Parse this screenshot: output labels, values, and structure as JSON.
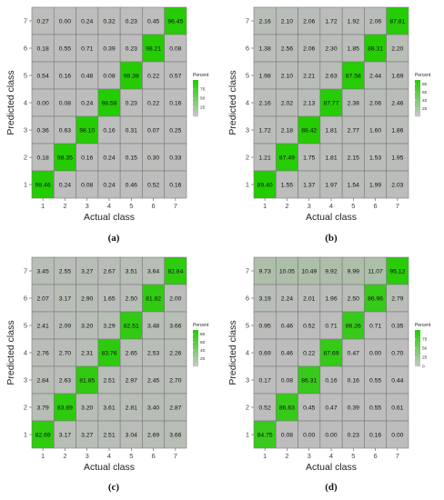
{
  "class_labels": [
    "1",
    "2",
    "3",
    "4",
    "5",
    "6",
    "7"
  ],
  "legend_title": "Percent",
  "chart_data": [
    {
      "type": "heatmap",
      "caption": "(a)",
      "xlabel": "Actual class",
      "ylabel": "Predicted class",
      "x": [
        "1",
        "2",
        "3",
        "4",
        "5",
        "6",
        "7"
      ],
      "y": [
        "1",
        "2",
        "3",
        "4",
        "5",
        "6",
        "7"
      ],
      "legend": {
        "title": "Percent",
        "ticks": [
          25,
          50,
          75
        ],
        "range": [
          0,
          100
        ],
        "placement": "right"
      },
      "rows": [
        {
          "label": "7",
          "values": [
            "0.27",
            "0.00",
            "0.24",
            "0.32",
            "0.23",
            "0.45",
            "96.45"
          ]
        },
        {
          "label": "6",
          "values": [
            "0.18",
            "0.55",
            "0.71",
            "0.39",
            "0.23",
            "98.21",
            "0.08"
          ]
        },
        {
          "label": "5",
          "values": [
            "0.54",
            "0.16",
            "0.48",
            "0.08",
            "98.38",
            "0.22",
            "0.57"
          ]
        },
        {
          "label": "4",
          "values": [
            "0.00",
            "0.08",
            "0.24",
            "98.58",
            "0.23",
            "0.22",
            "0.16"
          ]
        },
        {
          "label": "3",
          "values": [
            "0.36",
            "0.63",
            "98.10",
            "0.16",
            "0.31",
            "0.07",
            "0.25"
          ]
        },
        {
          "label": "2",
          "values": [
            "0.18",
            "98.35",
            "0.16",
            "0.24",
            "0.15",
            "0.30",
            "0.33"
          ]
        },
        {
          "label": "1",
          "values": [
            "98.46",
            "0.24",
            "0.08",
            "0.24",
            "0.46",
            "0.52",
            "0.16"
          ]
        }
      ]
    },
    {
      "type": "heatmap",
      "caption": "(b)",
      "xlabel": "Actual class",
      "ylabel": "Predicted class",
      "x": [
        "1",
        "2",
        "3",
        "4",
        "5",
        "6",
        "7"
      ],
      "y": [
        "1",
        "2",
        "3",
        "4",
        "5",
        "6",
        "7"
      ],
      "legend": {
        "title": "Percent",
        "ticks": [
          20,
          40,
          60,
          80
        ],
        "range": [
          0,
          90
        ],
        "placement": "right"
      },
      "rows": [
        {
          "label": "7",
          "values": [
            "2.16",
            "2.10",
            "2.06",
            "1.72",
            "1.92",
            "2.06",
            "87.81"
          ]
        },
        {
          "label": "6",
          "values": [
            "1.38",
            "2.56",
            "2.06",
            "2.30",
            "1.85",
            "88.31",
            "2.20"
          ]
        },
        {
          "label": "5",
          "values": [
            "1.98",
            "2.10",
            "2.21",
            "2.63",
            "87.58",
            "2.44",
            "1.69"
          ]
        },
        {
          "label": "4",
          "values": [
            "2.16",
            "2.02",
            "2.13",
            "87.77",
            "2.38",
            "2.06",
            "2.46"
          ]
        },
        {
          "label": "3",
          "values": [
            "1.72",
            "2.18",
            "88.42",
            "1.81",
            "2.77",
            "1.60",
            "1.86"
          ]
        },
        {
          "label": "2",
          "values": [
            "1.21",
            "87.49",
            "1.75",
            "1.81",
            "2.15",
            "1.53",
            "1.95"
          ]
        },
        {
          "label": "1",
          "values": [
            "89.40",
            "1.55",
            "1.37",
            "1.97",
            "1.54",
            "1.99",
            "2.03"
          ]
        }
      ]
    },
    {
      "type": "heatmap",
      "caption": "(c)",
      "xlabel": "Actual class",
      "ylabel": "Predicted class",
      "x": [
        "1",
        "2",
        "3",
        "4",
        "5",
        "6",
        "7"
      ],
      "y": [
        "1",
        "2",
        "3",
        "4",
        "5",
        "6",
        "7"
      ],
      "legend": {
        "title": "Percent",
        "ticks": [
          20,
          40,
          60,
          80
        ],
        "range": [
          0,
          90
        ],
        "placement": "right"
      },
      "rows": [
        {
          "label": "7",
          "values": [
            "3.45",
            "2.55",
            "3.27",
            "2.67",
            "3.51",
            "3.64",
            "82.84"
          ]
        },
        {
          "label": "6",
          "values": [
            "2.07",
            "3.17",
            "2.90",
            "1.65",
            "2.50",
            "81.82",
            "2.00"
          ]
        },
        {
          "label": "5",
          "values": [
            "2.41",
            "2.09",
            "3.20",
            "3.29",
            "82.51",
            "3.48",
            "3.66"
          ]
        },
        {
          "label": "4",
          "values": [
            "2.76",
            "2.70",
            "2.31",
            "83.76",
            "2.65",
            "2.53",
            "2.26"
          ]
        },
        {
          "label": "3",
          "values": [
            "2.84",
            "2.63",
            "81.85",
            "2.51",
            "2.97",
            "2.45",
            "2.70"
          ]
        },
        {
          "label": "2",
          "values": [
            "3.79",
            "83.69",
            "3.20",
            "3.61",
            "2.81",
            "3.40",
            "2.87"
          ]
        },
        {
          "label": "1",
          "values": [
            "82.69",
            "3.17",
            "3.27",
            "2.51",
            "3.04",
            "2.69",
            "3.66"
          ]
        }
      ]
    },
    {
      "type": "heatmap",
      "caption": "(d)",
      "xlabel": "Actual class",
      "ylabel": "Predicted class",
      "x": [
        "1",
        "2",
        "3",
        "4",
        "5",
        "6",
        "7"
      ],
      "y": [
        "1",
        "2",
        "3",
        "4",
        "5",
        "6",
        "7"
      ],
      "legend": {
        "title": "Percent",
        "ticks": [
          0,
          25,
          50,
          75
        ],
        "range": [
          0,
          100
        ],
        "placement": "right"
      },
      "rows": [
        {
          "label": "7",
          "values": [
            "9.73",
            "10.05",
            "10.49",
            "9.92",
            "9.99",
            "11.07",
            "95.12"
          ]
        },
        {
          "label": "6",
          "values": [
            "3.19",
            "2.24",
            "2.01",
            "1.96",
            "2.50",
            "86.96",
            "2.79"
          ]
        },
        {
          "label": "5",
          "values": [
            "0.95",
            "0.46",
            "0.52",
            "0.71",
            "86.26",
            "0.71",
            "0.35"
          ]
        },
        {
          "label": "4",
          "values": [
            "0.69",
            "0.46",
            "0.22",
            "87.69",
            "0.47",
            "0.00",
            "0.70"
          ]
        },
        {
          "label": "3",
          "values": [
            "0.17",
            "0.08",
            "86.31",
            "0.16",
            "0.16",
            "0.55",
            "0.44"
          ]
        },
        {
          "label": "2",
          "values": [
            "0.52",
            "86.63",
            "0.45",
            "0.47",
            "0.39",
            "0.55",
            "0.61"
          ]
        },
        {
          "label": "1",
          "values": [
            "84.75",
            "0.08",
            "0.00",
            "0.00",
            "0.23",
            "0.16",
            "0.00"
          ]
        }
      ]
    }
  ],
  "colors": {
    "low": "#bdbdbd",
    "high": "#22cc00",
    "grid": "#7a7a7a",
    "legend_low": "#c8c8c8"
  }
}
